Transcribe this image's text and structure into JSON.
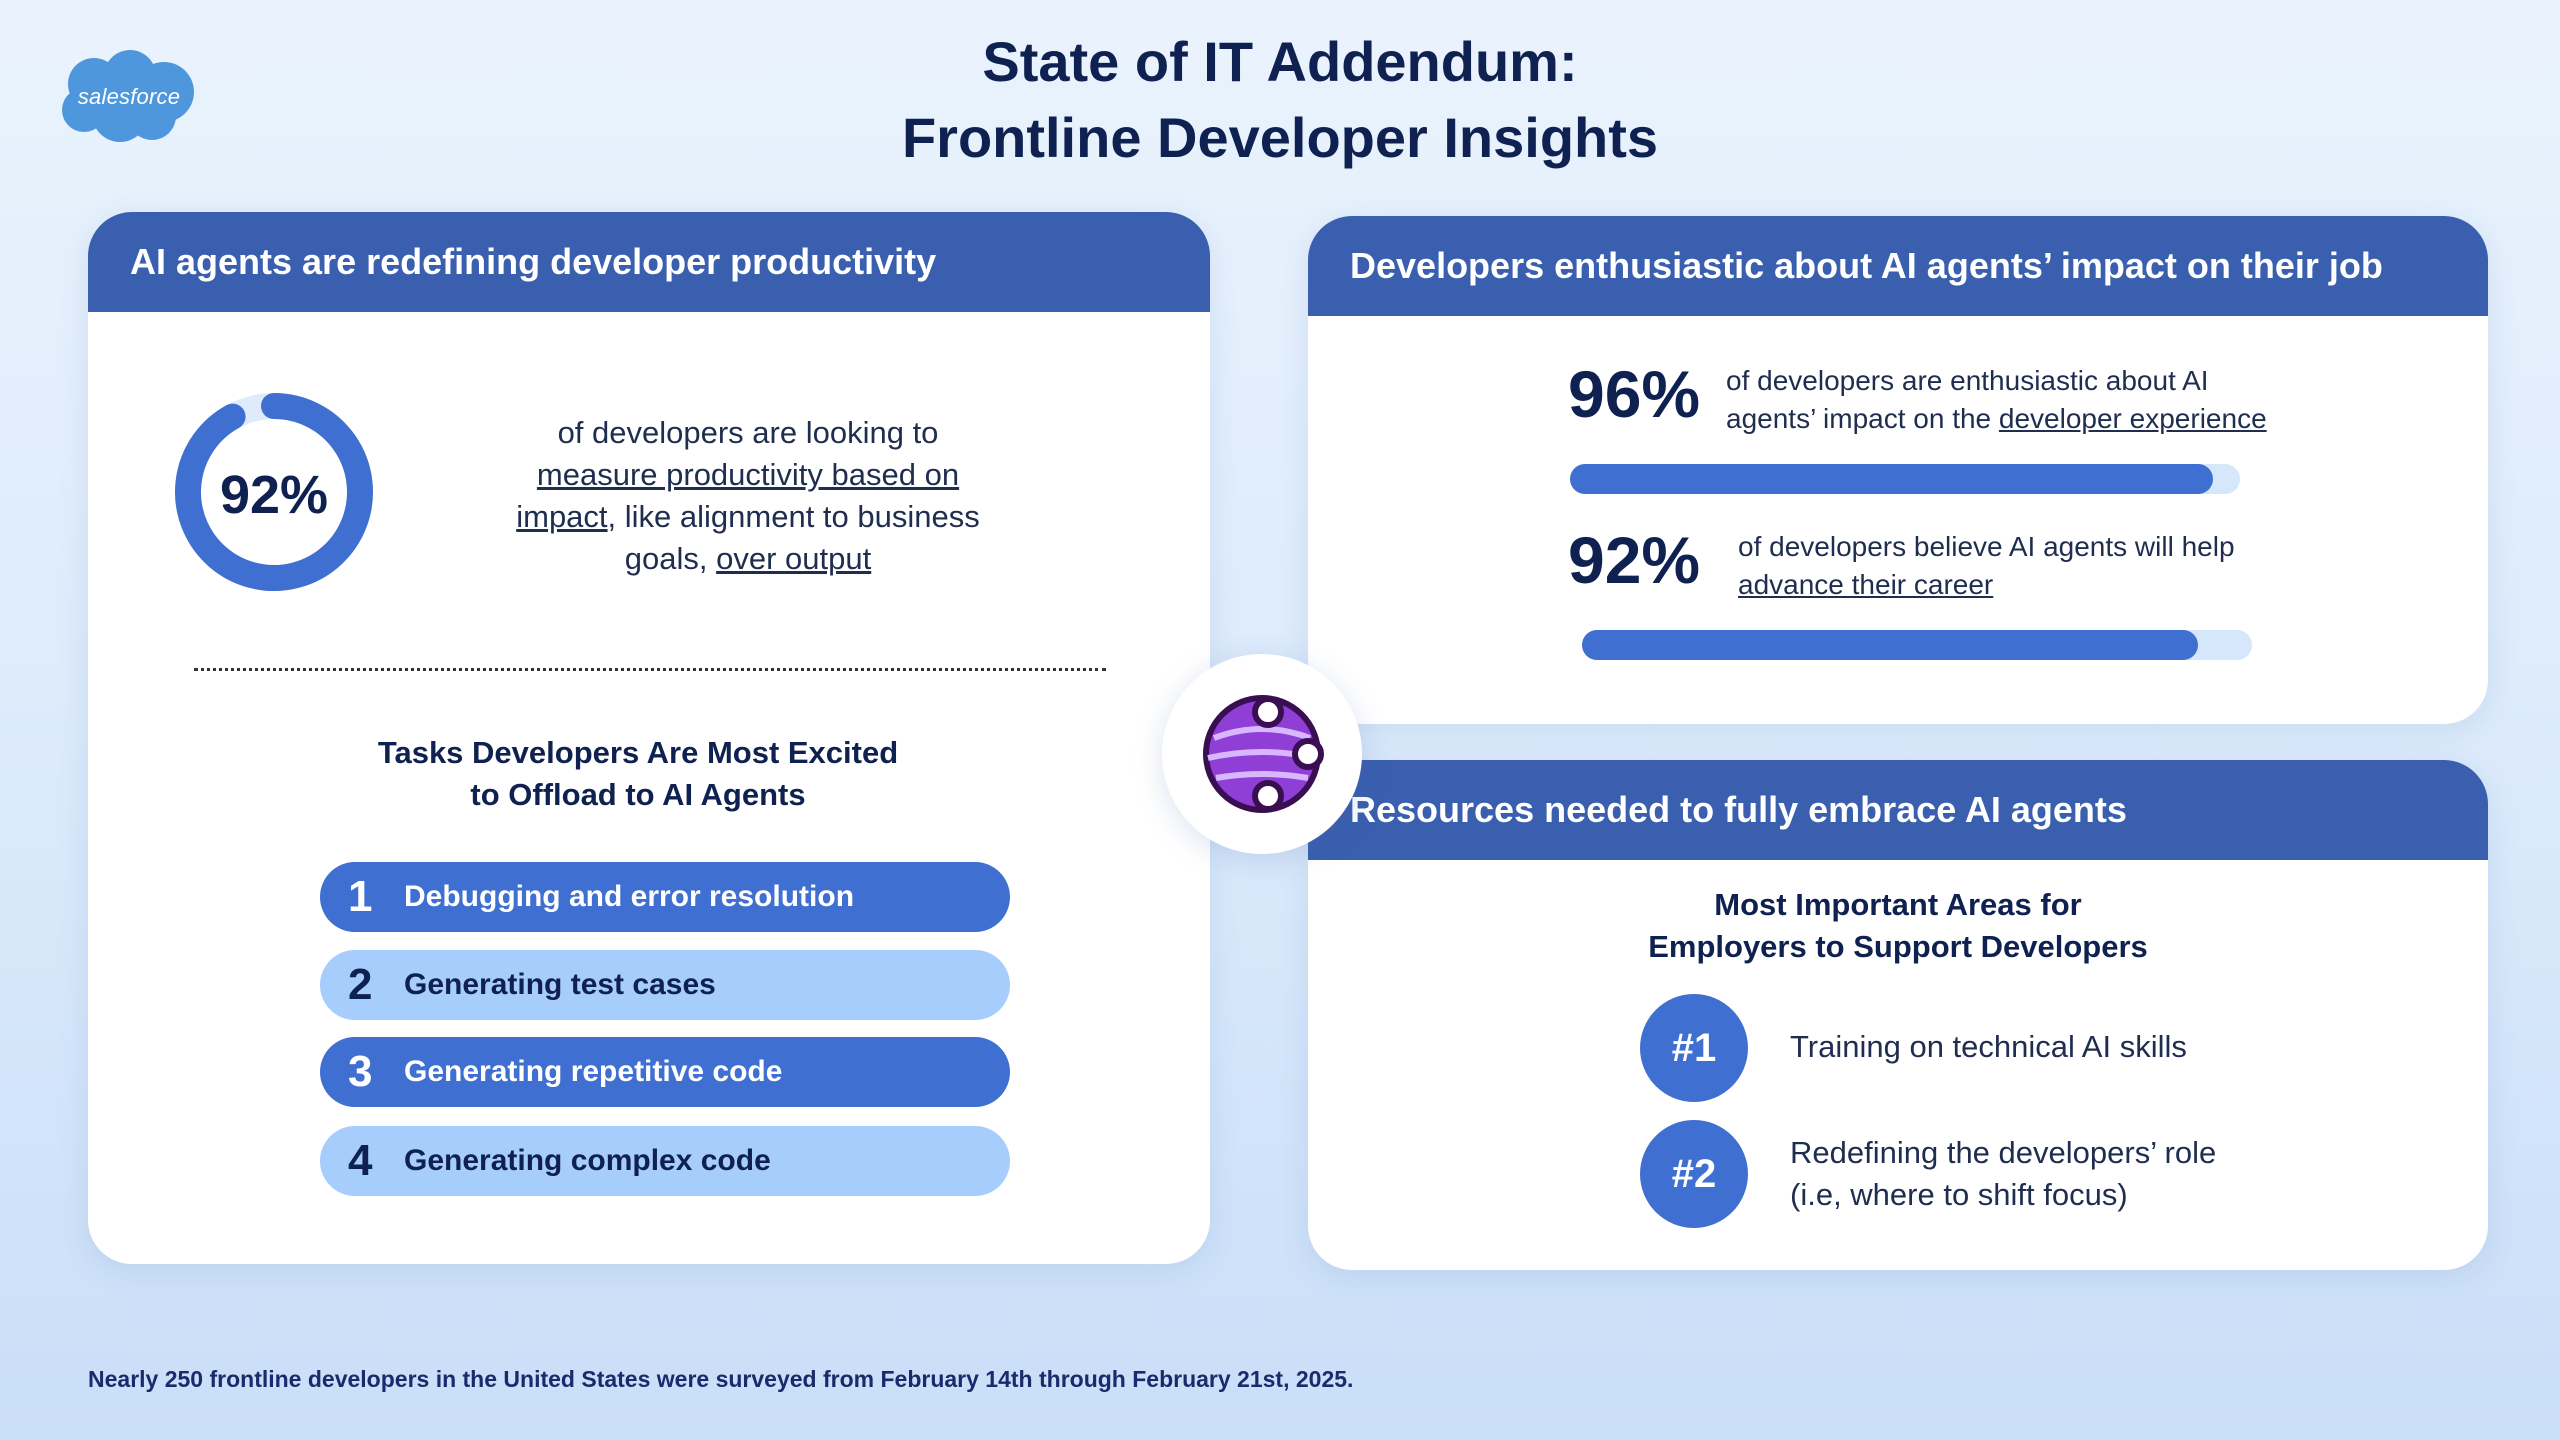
{
  "logo": {
    "text": "salesforce"
  },
  "title": {
    "line1": "State of IT Addendum:",
    "line2": "Frontline Developer Insights"
  },
  "left_card": {
    "header": "AI agents are redefining developer productivity",
    "donut": {
      "value_label": "92%",
      "value": 92,
      "color": "#3f6fd0",
      "track_color": "#dfeafb"
    },
    "donut_text": {
      "line1": "of developers are looking to",
      "line2": "measure productivity based on",
      "line3_u": "impact",
      "line3_rest": ", like alignment to business",
      "line4_a": "goals, ",
      "line4_u": "over output"
    },
    "tasks_title": {
      "line1": "Tasks Developers Are Most Excited",
      "line2": "to Offload to AI Agents"
    },
    "tasks": [
      {
        "num": "1",
        "label": "Debugging and error resolution"
      },
      {
        "num": "2",
        "label": "Generating test cases"
      },
      {
        "num": "3",
        "label": "Generating repetitive code"
      },
      {
        "num": "4",
        "label": "Generating complex code"
      }
    ]
  },
  "right_top_card": {
    "header": "Developers enthusiastic about AI agents’ impact on their job",
    "stats": [
      {
        "pct": "96%",
        "value": 96,
        "text_line1": "of developers are enthusiastic about AI",
        "text_line2_a": "agents’ impact on the ",
        "text_line2_u": "developer experience"
      },
      {
        "pct": "92%",
        "value": 92,
        "text_line1": "of developers believe AI agents will help",
        "text_line2_a": "",
        "text_line2_u": "advance their career"
      }
    ]
  },
  "right_bottom_card": {
    "header": "Resources needed to fully embrace AI agents",
    "areas_title": {
      "line1": "Most Important Areas for",
      "line2": "Employers to Support Developers"
    },
    "ranks": [
      {
        "rank": "#1",
        "line1": "Training on technical AI skills",
        "line2": ""
      },
      {
        "rank": "#2",
        "line1": "Redefining the developers’ role",
        "line2": "(i.e, where to shift focus)"
      }
    ]
  },
  "footnote": "Nearly 250 frontline developers in the United States were surveyed from February 14th through February 21st, 2025.",
  "icons": {
    "logo": "salesforce-cloud-logo",
    "center": "ai-agent-icon"
  }
}
